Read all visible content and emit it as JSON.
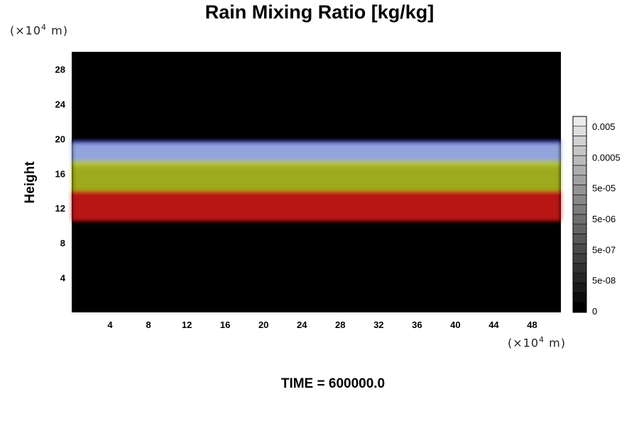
{
  "chart_data": {
    "type": "heatmap",
    "title": "Rain Mixing Ratio [kg/kg]",
    "ylabel": "Height",
    "x_unit": "(×10",
    "x_unit_exp": "4",
    "x_unit_suffix": " m)",
    "y_unit": "(×10",
    "y_unit_exp": "4",
    "y_unit_suffix": " m)",
    "x_ticks": [
      4,
      8,
      12,
      16,
      20,
      24,
      28,
      32,
      36,
      40,
      44,
      48
    ],
    "y_ticks": [
      4,
      8,
      12,
      16,
      20,
      24,
      28
    ],
    "xlim": [
      0,
      51
    ],
    "ylim": [
      0,
      30
    ],
    "background_color": "#000000",
    "colorbar": {
      "labels": [
        "0.005",
        "0.0005",
        "5e-05",
        "5e-06",
        "5e-07",
        "5e-08",
        "0"
      ],
      "steps": 20
    },
    "layers": [
      {
        "color": "#2030c8",
        "y_from": 17.5,
        "y_to": 19.8
      },
      {
        "color": "#a8b8e8",
        "y_from": 16.8,
        "y_to": 19.5
      },
      {
        "color": "#b8c820",
        "y_from": 13.8,
        "y_to": 17.5
      },
      {
        "color": "#d81818",
        "y_from": 10.5,
        "y_to": 14.0
      }
    ],
    "time_text": "TIME = 600000.0"
  }
}
